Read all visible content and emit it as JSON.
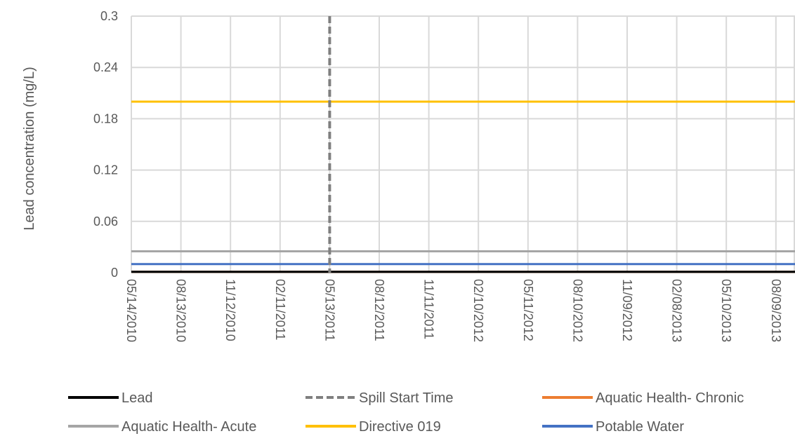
{
  "chart_data": {
    "type": "line",
    "title": "",
    "xlabel": "",
    "ylabel": "Lead concentration  (mg/L)",
    "ylim": [
      0,
      0.3
    ],
    "y_ticks": [
      "0",
      "0.06",
      "0.12",
      "0.18",
      "0.24",
      "0.3"
    ],
    "y_tick_values": [
      0,
      0.06,
      0.12,
      0.18,
      0.24,
      0.3
    ],
    "x_range": [
      "05/14/2010",
      "09/30/2013"
    ],
    "x_ticks": [
      "05/14/2010",
      "08/13/2010",
      "11/12/2010",
      "02/11/2011",
      "05/13/2011",
      "08/12/2011",
      "11/11/2011",
      "02/10/2012",
      "05/11/2012",
      "08/10/2012",
      "11/09/2012",
      "02/08/2013",
      "05/10/2013",
      "08/09/2013"
    ],
    "grid": true,
    "legend_position": "bottom",
    "series": [
      {
        "name": "Lead",
        "style": "solid",
        "color": "#000000",
        "x": [
          "05/14/2010",
          "09/30/2013"
        ],
        "y": [
          0.001,
          0.001
        ]
      },
      {
        "name": "Spill Start Time",
        "style": "dashed",
        "color": "#7f7f7f",
        "orientation": "vertical",
        "x_value": "05/13/2011"
      },
      {
        "name": "Aquatic Health- Chronic",
        "style": "solid",
        "color": "#ed7d31",
        "x": [
          "05/14/2010",
          "09/30/2013"
        ],
        "y": [
          0.001,
          0.001
        ]
      },
      {
        "name": "Aquatic Health- Acute",
        "style": "solid",
        "color": "#a5a5a5",
        "x": [
          "05/14/2010",
          "09/30/2013"
        ],
        "y": [
          0.025,
          0.025
        ]
      },
      {
        "name": "Directive 019",
        "style": "solid",
        "color": "#ffc000",
        "x": [
          "05/14/2010",
          "09/30/2013"
        ],
        "y": [
          0.2,
          0.2
        ]
      },
      {
        "name": "Potable Water",
        "style": "solid",
        "color": "#4472c4",
        "x": [
          "05/14/2010",
          "09/30/2013"
        ],
        "y": [
          0.01,
          0.01
        ]
      }
    ],
    "legend_rows": [
      [
        0,
        1,
        2
      ],
      [
        3,
        4,
        5
      ]
    ]
  }
}
